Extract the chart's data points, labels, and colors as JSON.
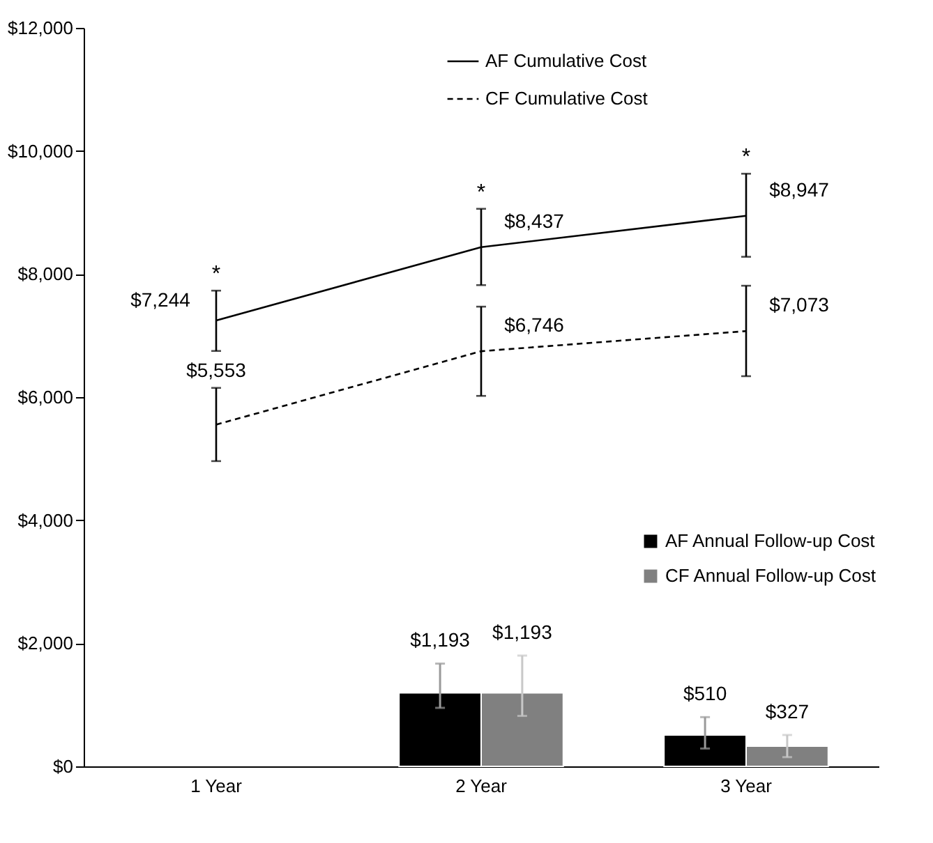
{
  "chart_data": {
    "type": "line",
    "categories": [
      "1 Year",
      "2 Year",
      "3 Year"
    ],
    "ylim": [
      0,
      12000
    ],
    "yticks": [
      {
        "value": 0,
        "label": "$0"
      },
      {
        "value": 2000,
        "label": "$2,000"
      },
      {
        "value": 4000,
        "label": "$4,000"
      },
      {
        "value": 6000,
        "label": "$6,000"
      },
      {
        "value": 8000,
        "label": "$8,000"
      },
      {
        "value": 10000,
        "label": "$10,000"
      },
      {
        "value": 12000,
        "label": "$12,000"
      }
    ],
    "grid": false,
    "legend": "top",
    "series": [
      {
        "name": "AF Cumulative Cost",
        "line_style": "solid",
        "color": "#000000",
        "values": [
          7244,
          8437,
          8947
        ],
        "errors": [
          [
            6750,
            7730
          ],
          [
            7820,
            9060
          ],
          [
            8280,
            9630
          ]
        ],
        "value_labels": [
          "$7,244",
          "$8,437",
          "$8,947"
        ]
      },
      {
        "name": "CF Cumulative Cost",
        "line_style": "dashed",
        "color": "#000000",
        "values": [
          5553,
          6746,
          7073
        ],
        "errors": [
          [
            4960,
            6150
          ],
          [
            6020,
            7470
          ],
          [
            6340,
            7810
          ]
        ],
        "value_labels": [
          "$5,553",
          "$6,746",
          "$7,073"
        ]
      },
      {
        "name": "AF Annual Follow-up Cost",
        "type": "bar",
        "color": "#000000",
        "values": [
          null,
          1193,
          510
        ],
        "errors": [
          null,
          [
            950,
            1670
          ],
          [
            290,
            800
          ]
        ],
        "value_labels": [
          null,
          "$1,193",
          "$510"
        ]
      },
      {
        "name": "CF Annual Follow-up Cost",
        "type": "bar",
        "color": "#808080",
        "values": [
          null,
          1193,
          327
        ],
        "errors": [
          null,
          [
            820,
            1800
          ],
          [
            150,
            510
          ]
        ],
        "value_labels": [
          null,
          "$1,193",
          "$327"
        ]
      }
    ],
    "annotations": [
      {
        "text": "*",
        "x": "1 Year",
        "y": 7730
      },
      {
        "text": "*",
        "x": "2 Year",
        "y": 9060
      },
      {
        "text": "*",
        "x": "3 Year",
        "y": 9630
      }
    ]
  }
}
